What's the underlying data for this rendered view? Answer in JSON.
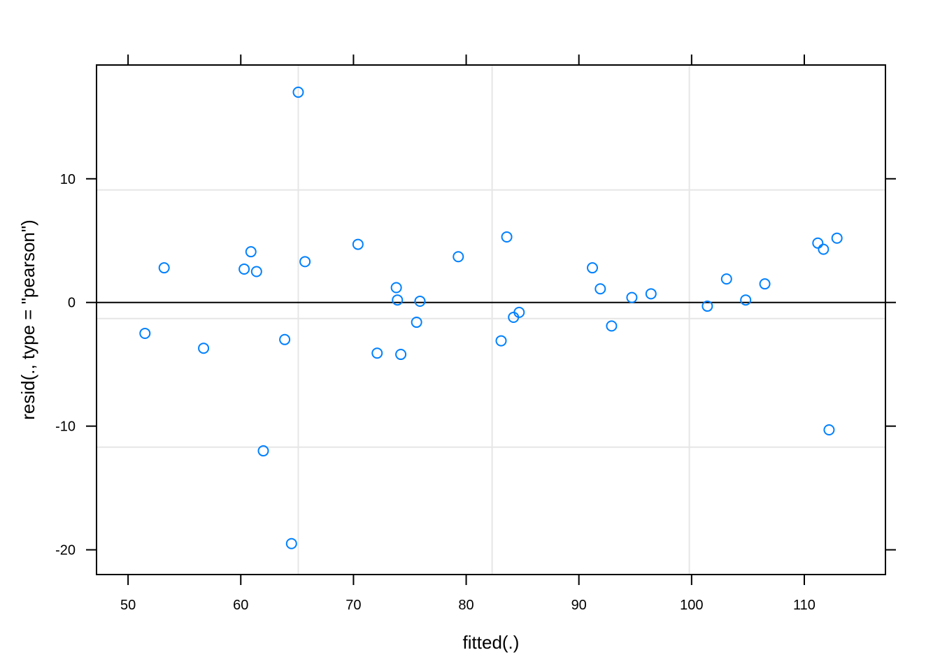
{
  "chart_data": {
    "type": "scatter",
    "title": "",
    "xlabel": "fitted(.)",
    "ylabel": "resid(., type = \"pearson\")",
    "xlim": [
      47.2,
      117.2
    ],
    "ylim": [
      -22.0,
      19.2
    ],
    "x_ticks": [
      50,
      60,
      70,
      80,
      90,
      100,
      110
    ],
    "x_tick_labels": [
      "50",
      "60",
      "70",
      "80",
      "90",
      "100",
      "110"
    ],
    "y_ticks": [
      -20,
      -10,
      0,
      10
    ],
    "y_tick_labels": [
      "-20",
      "-10",
      "0",
      "10"
    ],
    "grid_x": [
      65.1,
      82.3,
      99.8
    ],
    "grid_y": [
      -11.7,
      -1.3,
      9.1
    ],
    "reference_line_y": 0,
    "point_color": "#0080ff",
    "series": [
      {
        "x": [
          51.5,
          53.2,
          56.7,
          60.3,
          60.9,
          61.4,
          62.0,
          63.9,
          64.5,
          65.1,
          65.7,
          70.4,
          72.1,
          73.8,
          73.9,
          74.2,
          75.6,
          75.9,
          79.3,
          83.1,
          83.6,
          84.2,
          84.7,
          91.2,
          91.9,
          92.9,
          94.7,
          96.4,
          101.4,
          103.1,
          104.8,
          106.5,
          111.2,
          111.7,
          112.2,
          112.9
        ],
        "y": [
          -2.5,
          2.8,
          -3.7,
          2.7,
          4.1,
          2.5,
          -12.0,
          -3.0,
          -19.5,
          17.0,
          3.3,
          4.7,
          -4.1,
          1.2,
          0.2,
          -4.2,
          -1.6,
          0.1,
          3.7,
          -3.1,
          5.3,
          -1.2,
          -0.8,
          2.8,
          1.1,
          -1.9,
          0.4,
          0.7,
          -0.3,
          1.9,
          0.2,
          1.5,
          4.8,
          4.3,
          -10.3,
          5.2
        ]
      }
    ]
  }
}
